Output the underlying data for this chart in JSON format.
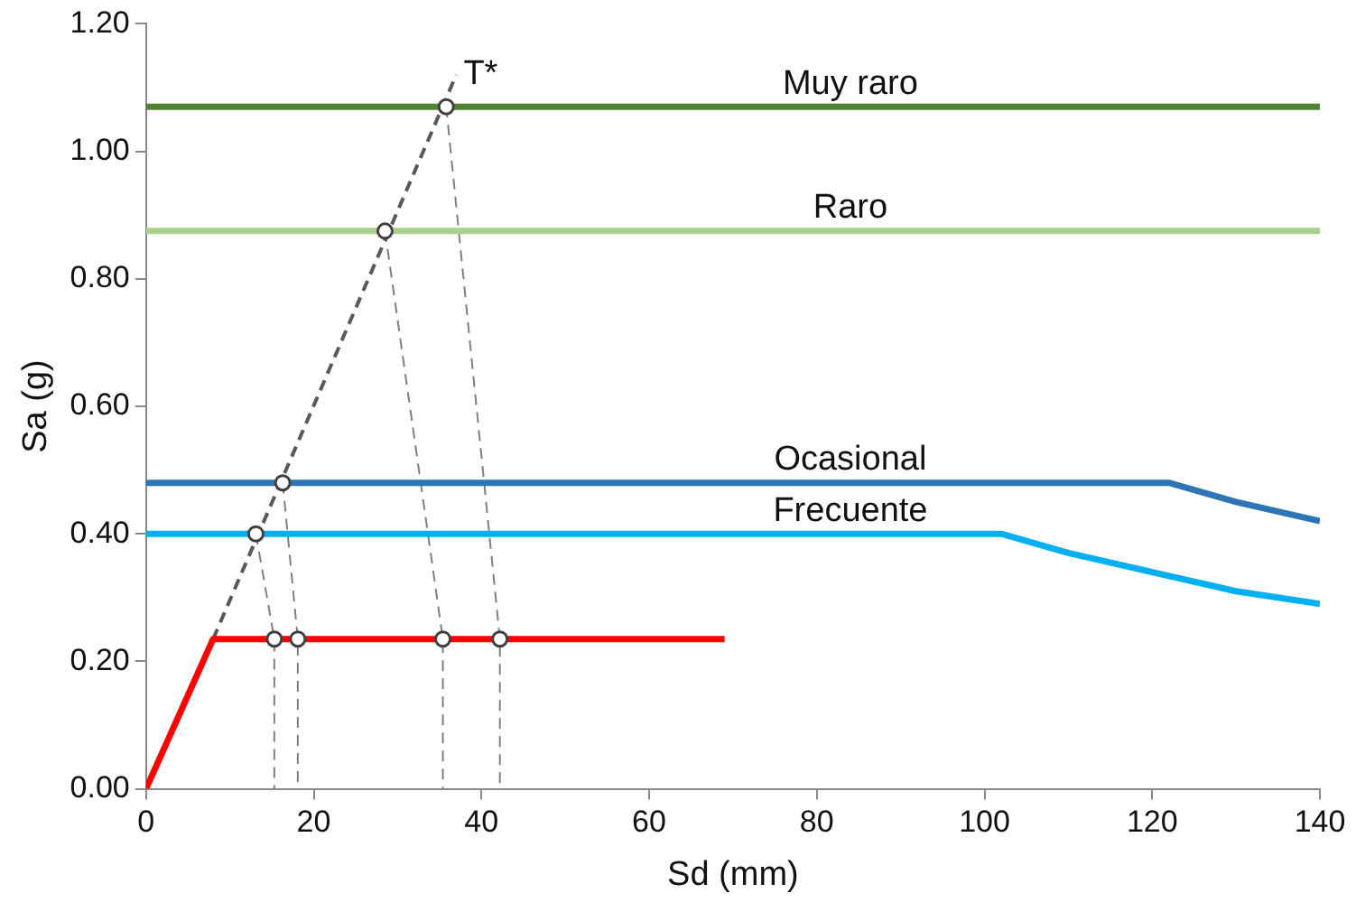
{
  "chart_data": {
    "type": "line",
    "xlabel": "Sd (mm)",
    "ylabel": "Sa (g)",
    "xlim": [
      0,
      140
    ],
    "xticks": [
      0,
      20,
      40,
      60,
      80,
      100,
      120,
      140
    ],
    "ylim": [
      0,
      1.2
    ],
    "yticks": [
      {
        "value": 0,
        "label": "0.00"
      },
      {
        "value": 0.2,
        "label": "0.20"
      },
      {
        "value": 0.4,
        "label": "0.40"
      },
      {
        "value": 0.6,
        "label": "0.60"
      },
      {
        "value": 0.8,
        "label": "0.80"
      },
      {
        "value": 1.0,
        "label": "1.00"
      },
      {
        "value": 1.2,
        "label": "1.20"
      }
    ],
    "grid": false,
    "legend": false,
    "marker": "none",
    "line_style": "solid",
    "series": [
      {
        "name": "Muy raro",
        "color": "#548235",
        "x": [
          0,
          140
        ],
        "values": [
          1.07,
          1.07
        ]
      },
      {
        "name": "Raro",
        "color": "#a9d18e",
        "x": [
          0,
          140
        ],
        "values": [
          0.875,
          0.875
        ]
      },
      {
        "name": "Ocasional",
        "color": "#2e75b6",
        "x": [
          0,
          122,
          130,
          140
        ],
        "values": [
          0.48,
          0.48,
          0.45,
          0.42
        ]
      },
      {
        "name": "Frecuente",
        "color": "#00b0f0",
        "x": [
          0,
          102,
          110,
          120,
          130,
          140
        ],
        "values": [
          0.4,
          0.4,
          0.37,
          0.34,
          0.31,
          0.29
        ]
      },
      {
        "color": "#ff0000",
        "x": [
          0,
          8,
          69
        ],
        "values": [
          0,
          0.235,
          0.235
        ]
      },
      {
        "name": "T*",
        "color": "#595959",
        "line_style": "dashed",
        "x": [
          8,
          37
        ],
        "values": [
          0.235,
          1.12
        ]
      },
      {
        "color": "#7f7f7f",
        "line_style": "dashed",
        "x": [
          13.1,
          15.3,
          15.3
        ],
        "values": [
          0.4,
          0.235,
          0
        ]
      },
      {
        "color": "#7f7f7f",
        "line_style": "dashed",
        "x": [
          16.3,
          18.1,
          18.1
        ],
        "values": [
          0.48,
          0.235,
          0
        ]
      },
      {
        "color": "#7f7f7f",
        "line_style": "dashed",
        "x": [
          28.5,
          35.4,
          35.4
        ],
        "values": [
          0.875,
          0.235,
          0
        ]
      },
      {
        "color": "#7f7f7f",
        "line_style": "dashed",
        "x": [
          35.8,
          42.2,
          42.2
        ],
        "values": [
          1.07,
          0.235,
          0
        ]
      },
      {
        "type": "scatter",
        "marker": "circle",
        "color": "#404040",
        "x": [
          13.1,
          16.3,
          28.5,
          35.8,
          15.3,
          18.1,
          35.4,
          42.2
        ],
        "values": [
          0.4,
          0.48,
          0.875,
          1.07,
          0.235,
          0.235,
          0.235,
          0.235
        ]
      }
    ]
  }
}
